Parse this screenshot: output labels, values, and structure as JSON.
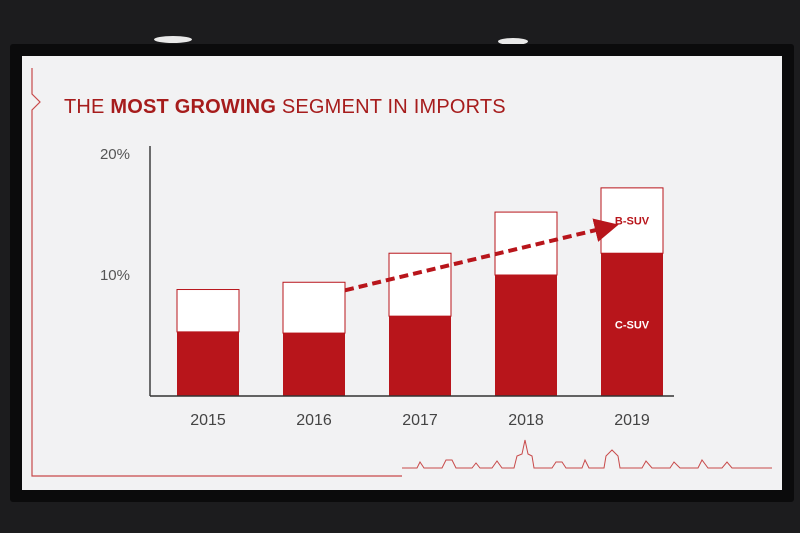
{
  "slide": {
    "title_prefix": "THE ",
    "title_bold": "MOST GROWING",
    "title_suffix": " SEGMENT IN IMPORTS"
  },
  "colors": {
    "accent": "#b8151b",
    "bar_outline": "#b8151b",
    "bar_top_fill": "#ffffff",
    "axis": "#333333"
  },
  "chart_data": {
    "type": "bar",
    "stacked": true,
    "categories": [
      "2015",
      "2016",
      "2017",
      "2018",
      "2019"
    ],
    "series": [
      {
        "name": "C-SUV",
        "values": [
          5.3,
          5.2,
          6.6,
          10.0,
          11.8
        ]
      },
      {
        "name": "B-SUV",
        "values": [
          3.5,
          4.2,
          5.2,
          5.2,
          5.4
        ]
      }
    ],
    "yticks": [
      "10%",
      "20%"
    ],
    "ytick_values": [
      10,
      20
    ],
    "ylim": [
      0,
      20
    ],
    "series_labels_on": "2019",
    "annotations": [
      {
        "type": "trend-arrow",
        "from": "2016",
        "to": "2019"
      }
    ],
    "grid": false,
    "legend": "none"
  }
}
